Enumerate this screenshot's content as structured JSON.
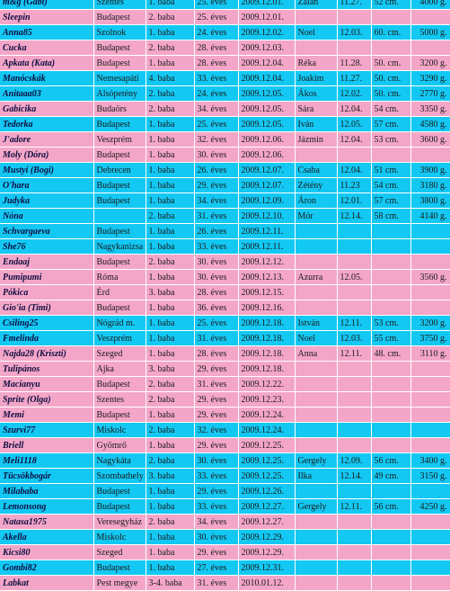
{
  "colors": {
    "pink_row": "#f4a6c8",
    "blue_row": "#13c8f3"
  },
  "rows": [
    {
      "color": "blue",
      "nick": "m&g (Gabi)",
      "city": "Szentes",
      "baby": "1. baba",
      "age": "25. éves",
      "date": "2009.12.01.",
      "name": "Zalán",
      "birth": "11.27.",
      "length": "52 cm.",
      "weight": "4000 g."
    },
    {
      "color": "pink",
      "nick": "Sleepin",
      "city": "Budapest",
      "baby": "2. baba",
      "age": "25. éves",
      "date": "2009.12.01.",
      "name": "",
      "birth": "",
      "length": "",
      "weight": ""
    },
    {
      "color": "blue",
      "nick": "Anna85",
      "city": "Szolnok",
      "baby": "1. baba",
      "age": "24. éves",
      "date": "2009.12.02.",
      "name": "Noel",
      "birth": "12.03.",
      "length": "60. cm.",
      "weight": "5000 g."
    },
    {
      "color": "pink",
      "nick": "Cucka",
      "city": "Budapest",
      "baby": "2. baba",
      "age": "28. éves",
      "date": "2009.12.03.",
      "name": "",
      "birth": "",
      "length": "",
      "weight": ""
    },
    {
      "color": "pink",
      "nick": "Apkata (Kata)",
      "city": "Budapest",
      "baby": "1. baba",
      "age": "28. éves",
      "date": "2009.12.04.",
      "name": "Réka",
      "birth": "11.28.",
      "length": "50. cm.",
      "weight": "3200 g."
    },
    {
      "color": "blue",
      "nick": "Manócskák",
      "city": "Nemesapáti",
      "baby": "4. baba",
      "age": "33. éves",
      "date": "2009.12.04.",
      "name": "Joakim",
      "birth": "11.27.",
      "length": "50. cm.",
      "weight": "3290 g."
    },
    {
      "color": "blue",
      "nick": "Anitaaa03",
      "city": "Alsópetény",
      "baby": "2. baba",
      "age": "24. éves",
      "date": "2009.12.05.",
      "name": "Ákos",
      "birth": "12.02.",
      "length": "50. cm.",
      "weight": "2770 g."
    },
    {
      "color": "pink",
      "nick": "Gabicika",
      "city": "Budaörs",
      "baby": "2. baba",
      "age": "34. éves",
      "date": "2009.12.05.",
      "name": "Sára",
      "birth": "12.04.",
      "length": "54 cm.",
      "weight": "3350 g."
    },
    {
      "color": "blue",
      "nick": "Tedorka",
      "city": "Budapest",
      "baby": "1. baba",
      "age": "25. éves",
      "date": "2009.12.05.",
      "name": "Iván",
      "birth": "12.05.",
      "length": "57 cm.",
      "weight": "4580 g."
    },
    {
      "color": "pink",
      "nick": "J'adore",
      "city": "Veszprém",
      "baby": "1. baba",
      "age": "32. éves",
      "date": "2009.12.06.",
      "name": "Jázmin",
      "birth": "12.04.",
      "length": "53 cm.",
      "weight": "3600 g."
    },
    {
      "color": "pink",
      "nick": "Moly (Dóra)",
      "city": "Budapest",
      "baby": "1. baba",
      "age": "30. éves",
      "date": "2009.12.06.",
      "name": "",
      "birth": "",
      "length": "",
      "weight": ""
    },
    {
      "color": "blue",
      "nick": "Mustyi (Bogi)",
      "city": "Debrecen",
      "baby": "1. baba",
      "age": "26. éves",
      "date": "2009.12.07.",
      "name": "Csaba",
      "birth": "12.04.",
      "length": "51 cm.",
      "weight": "3900 g."
    },
    {
      "color": "blue",
      "nick": "O'hara",
      "city": "Budapest",
      "baby": "1. baba",
      "age": "29. éves",
      "date": "2009.12.07.",
      "name": "Zétény",
      "birth": "11.23",
      "length": "54 cm.",
      "weight": "3180 g."
    },
    {
      "color": "blue",
      "nick": "Judyka",
      "city": "Budapest",
      "baby": "1. baba",
      "age": "34. éves",
      "date": "2009.12.09.",
      "name": "Áron",
      "birth": "12.01.",
      "length": "57 cm.",
      "weight": "3800 g."
    },
    {
      "color": "blue",
      "nick": "Nóna",
      "city": "",
      "baby": "2. baba",
      "age": "31. éves",
      "date": "2009.12.10.",
      "name": "Mór",
      "birth": "12.14.",
      "length": "58 cm.",
      "weight": "4140 g."
    },
    {
      "color": "blue",
      "nick": "Schvargaeva",
      "city": "Budapest",
      "baby": "1. baba",
      "age": "26. éves",
      "date": "2009.12.11.",
      "name": "",
      "birth": "",
      "length": "",
      "weight": ""
    },
    {
      "color": "blue",
      "nick": "She76",
      "city": "Nagykanizsa",
      "baby": "1. baba",
      "age": "33. éves",
      "date": "2009.12.11.",
      "name": "",
      "birth": "",
      "length": "",
      "weight": ""
    },
    {
      "color": "pink",
      "nick": "Endaaj",
      "city": "Budapest",
      "baby": "2. baba",
      "age": "30. éves",
      "date": "2009.12.12.",
      "name": "",
      "birth": "",
      "length": "",
      "weight": ""
    },
    {
      "color": "pink",
      "nick": "Pumipumi",
      "city": "Róma",
      "baby": "1. baba",
      "age": "30. éves",
      "date": "2009.12.13.",
      "name": "Azurra",
      "birth": "12.05.",
      "length": "",
      "weight": "3560 g."
    },
    {
      "color": "pink",
      "nick": "Pókica",
      "city": "Érd",
      "baby": "3. baba",
      "age": "28. éves",
      "date": "2009.12.15.",
      "name": "",
      "birth": "",
      "length": "",
      "weight": ""
    },
    {
      "color": "pink",
      "nick": "Gio'ia (Timi)",
      "city": "Budapest",
      "baby": "1. baba",
      "age": "36. éves",
      "date": "2009.12.16.",
      "name": "",
      "birth": "",
      "length": "",
      "weight": ""
    },
    {
      "color": "blue",
      "nick": "Csiling25",
      "city": "Nógrád m.",
      "baby": "1. baba",
      "age": "25. éves",
      "date": "2009.12.18.",
      "name": "István",
      "birth": "12.11.",
      "length": "53 cm.",
      "weight": "3200 g."
    },
    {
      "color": "blue",
      "nick": "Fmelinda",
      "city": "Veszprém",
      "baby": "1. baba",
      "age": "31. éves",
      "date": "2009.12.18.",
      "name": "Noel",
      "birth": "12.03.",
      "length": "55 cm.",
      "weight": "3750 g."
    },
    {
      "color": "pink",
      "nick": "Najda28 (Kriszti)",
      "city": "Szeged",
      "baby": "1. baba",
      "age": "28. éves",
      "date": "2009.12.18.",
      "name": "Anna",
      "birth": "12.11.",
      "length": "48. cm.",
      "weight": "3110 g."
    },
    {
      "color": "pink",
      "nick": "Tulipános",
      "city": "Ajka",
      "baby": "3. baba",
      "age": "29. éves",
      "date": "2009.12.18.",
      "name": "",
      "birth": "",
      "length": "",
      "weight": ""
    },
    {
      "color": "pink",
      "nick": "Macianyu",
      "city": "Budapest",
      "baby": "2. baba",
      "age": "31. éves",
      "date": "2009.12.22.",
      "name": "",
      "birth": "",
      "length": "",
      "weight": ""
    },
    {
      "color": "pink",
      "nick": "Sprite (Olga)",
      "city": "Szentes",
      "baby": "2. baba",
      "age": "29. éves",
      "date": "2009.12.23.",
      "name": "",
      "birth": "",
      "length": "",
      "weight": ""
    },
    {
      "color": "pink",
      "nick": "Memi",
      "city": "Budapest",
      "baby": "1. baba",
      "age": "29. éves",
      "date": "2009.12.24.",
      "name": "",
      "birth": "",
      "length": "",
      "weight": ""
    },
    {
      "color": "blue",
      "nick": "Szurvi77",
      "city": "Miskolc",
      "baby": "2. baba",
      "age": "32. éves",
      "date": "2009.12.24.",
      "name": "",
      "birth": "",
      "length": "",
      "weight": ""
    },
    {
      "color": "pink",
      "nick": "Briell",
      "city": "Gyömrő",
      "baby": "1. baba",
      "age": "29. éves",
      "date": "2009.12.25.",
      "name": "",
      "birth": "",
      "length": "",
      "weight": ""
    },
    {
      "color": "blue",
      "nick": "Meli1118",
      "city": "Nagykáta",
      "baby": "2. baba",
      "age": "30. éves",
      "date": "2009.12.25.",
      "name": "Gergely",
      "birth": "12.09.",
      "length": "56 cm.",
      "weight": "3400 g."
    },
    {
      "color": "blue",
      "nick": "Tücsökbogár",
      "city": "Szombathely",
      "baby": "3. baba",
      "age": "33. éves",
      "date": "2009.12.25.",
      "name": "Ilka",
      "birth": "12.14.",
      "length": "49 cm.",
      "weight": "3150 g."
    },
    {
      "color": "blue",
      "nick": "Milababa",
      "city": "Budapest",
      "baby": "1. baba",
      "age": "29. éves",
      "date": "2009.12.26.",
      "name": "",
      "birth": "",
      "length": "",
      "weight": ""
    },
    {
      "color": "blue",
      "nick": "Lemonsong",
      "city": "Budapest",
      "baby": "1. baba",
      "age": "33. éves",
      "date": "2009.12.27.",
      "name": "Gergely",
      "birth": "12.11.",
      "length": "56 cm.",
      "weight": "4250 g."
    },
    {
      "color": "pink",
      "nick": "Natasa1975",
      "city": "Veresegyház",
      "baby": "2. baba",
      "age": "34. éves",
      "date": "2009.12.27.",
      "name": "",
      "birth": "",
      "length": "",
      "weight": ""
    },
    {
      "color": "blue",
      "nick": "Akella",
      "city": "Miskolc",
      "baby": "1. baba",
      "age": "30. éves",
      "date": "2009.12.29.",
      "name": "",
      "birth": "",
      "length": "",
      "weight": ""
    },
    {
      "color": "pink",
      "nick": "Kicsi80",
      "city": "Szeged",
      "baby": "1. baba",
      "age": "29. éves",
      "date": "2009.12.29.",
      "name": "",
      "birth": "",
      "length": "",
      "weight": ""
    },
    {
      "color": "blue",
      "nick": "Gombi82",
      "city": "Budapest",
      "baby": "1. baba",
      "age": "27. éves",
      "date": "2009.12.31.",
      "name": "",
      "birth": "",
      "length": "",
      "weight": ""
    },
    {
      "color": "pink",
      "nick": "Labkat",
      "city": "Pest megye",
      "baby": "3-4. baba",
      "age": "31. éves",
      "date": "2010.01.12.",
      "name": "",
      "birth": "",
      "length": "",
      "weight": ""
    }
  ]
}
